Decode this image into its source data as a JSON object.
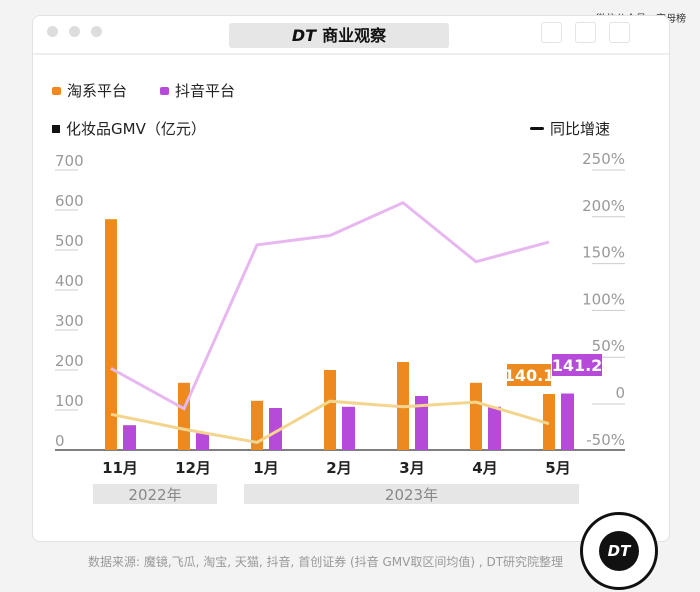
{
  "watermark": "@微信公众号：字母榜",
  "window": {
    "title_logo": "DT",
    "title": "商业观察"
  },
  "legend": {
    "taobao": "淘系平台",
    "douyin": "抖音平台",
    "gmv": "化妆品GMV（亿元）",
    "growth": "同比增速"
  },
  "footer": "数据来源: 魔镜,飞瓜, 淘宝, 天猫, 抖音, 首创证券 (抖音 GMV取区间均值) , DT研究院整理",
  "badge": "DT",
  "chart_data": {
    "type": "bar+line",
    "categories": [
      "11月",
      "12月",
      "1月",
      "2月",
      "3月",
      "4月",
      "5月"
    ],
    "year_groups": [
      {
        "label": "2022年",
        "span": 2
      },
      {
        "label": "2023年",
        "span": 5
      }
    ],
    "y_left": {
      "ticks": [
        "0",
        "100",
        "200",
        "300",
        "400",
        "500",
        "600",
        "700"
      ],
      "range": [
        0,
        700
      ]
    },
    "y_right": {
      "ticks": [
        "-50%",
        "0",
        "50%",
        "100%",
        "150%",
        "200%",
        "250%"
      ],
      "range": [
        -50,
        250
      ]
    },
    "colors": {
      "taobao": "#ec8a1f",
      "douyin": "#b64ad9",
      "taobao_line": "#f3d58e",
      "douyin_line": "#e7b8f0"
    },
    "series": [
      {
        "name": "淘系平台",
        "kind": "bar",
        "values": [
          577,
          168,
          123,
          200,
          220,
          168,
          140.1
        ]
      },
      {
        "name": "抖音平台",
        "kind": "bar",
        "values": [
          62,
          42,
          105,
          108,
          135,
          108,
          141.2
        ]
      },
      {
        "kind": "line",
        "axis": "right",
        "platform": "淘系平台",
        "values": [
          -11,
          -27,
          -41,
          3,
          -3,
          2,
          -21
        ]
      },
      {
        "kind": "line",
        "axis": "right",
        "platform": "抖音平台",
        "values": [
          38,
          -5,
          170,
          180,
          215,
          152,
          173
        ]
      }
    ],
    "data_labels": {
      "taobao_last": "140.1",
      "douyin_last": "141.2"
    }
  }
}
